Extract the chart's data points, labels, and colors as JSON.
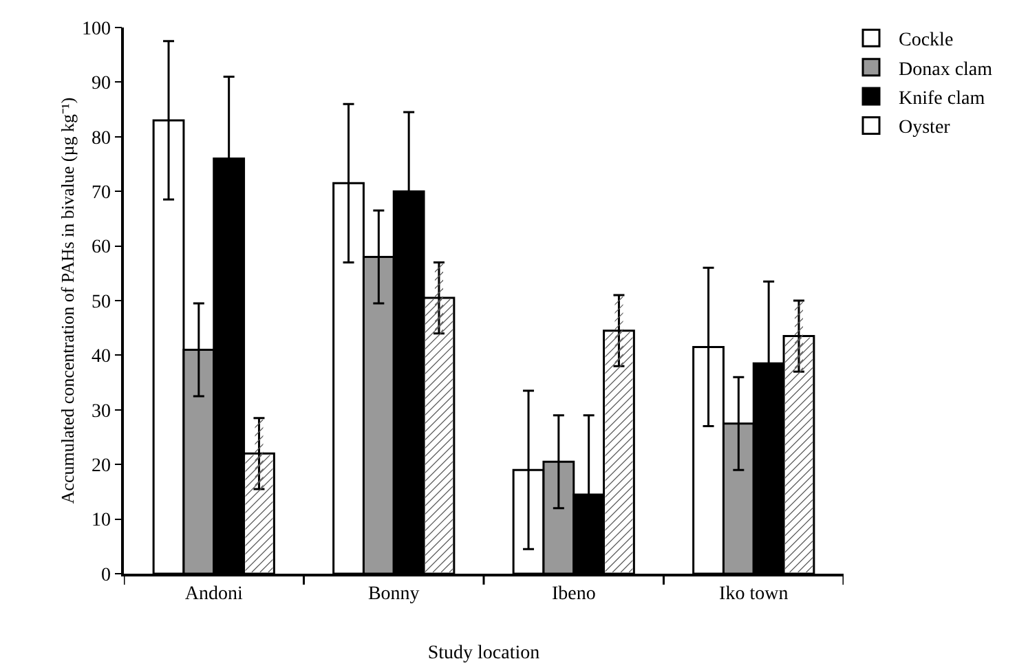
{
  "chart_data": {
    "type": "bar",
    "xlabel": "Study location",
    "ylabel": "Accumulated concentration of PAHs in bivalue (µg kg⁻¹)",
    "categories": [
      "Andoni",
      "Bonny",
      "Ibeno",
      "Iko town"
    ],
    "series": [
      {
        "name": "Cockle",
        "color": "#ffffff",
        "values": [
          83,
          71.5,
          19,
          41.5
        ],
        "errors": [
          14.5,
          14.5,
          14.5,
          14.5
        ]
      },
      {
        "name": "Donax clam",
        "color": "#999999",
        "values": [
          41,
          58,
          20.5,
          27.5
        ],
        "errors": [
          8.5,
          8.5,
          8.5,
          8.5
        ]
      },
      {
        "name": "Knife clam",
        "color": "#000000",
        "values": [
          76,
          70,
          14.5,
          38.5
        ],
        "errors": [
          15,
          14.5,
          14.5,
          15
        ]
      },
      {
        "name": "Oyster",
        "color": "#ffffff",
        "values": [
          22,
          50.5,
          44.5,
          43.5
        ],
        "errors": [
          6.5,
          6.5,
          6.5,
          6.5
        ]
      }
    ],
    "ylim": [
      0,
      100
    ],
    "yticks": [
      0,
      10,
      20,
      30,
      40,
      50,
      60,
      70,
      80,
      90,
      100
    ],
    "grid": false,
    "legend": "top right"
  }
}
